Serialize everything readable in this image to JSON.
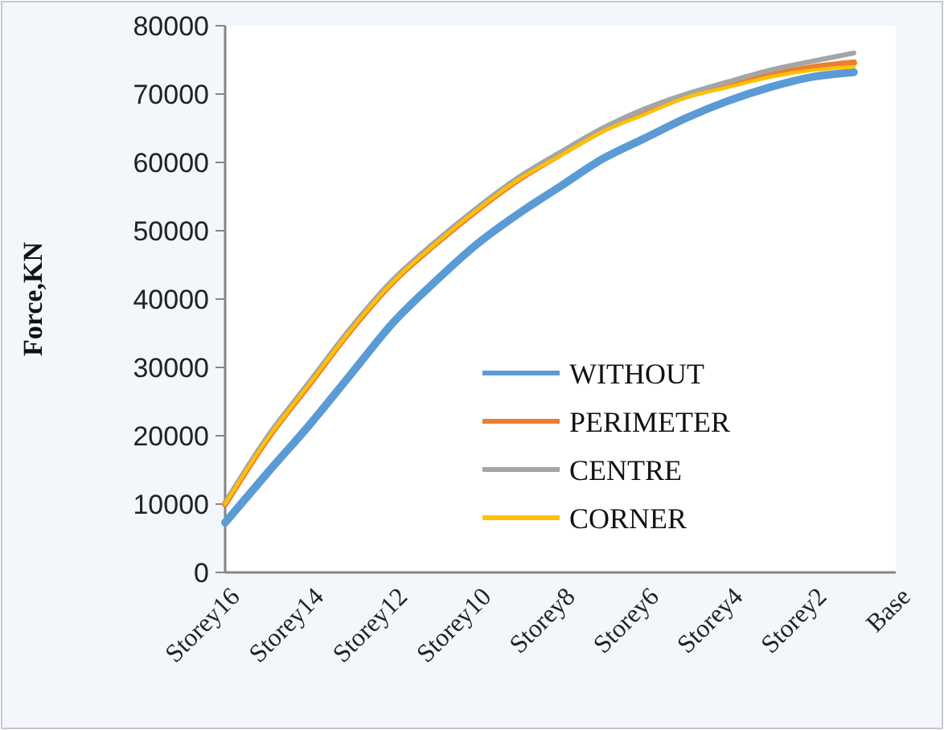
{
  "chart_data": {
    "type": "line",
    "ylabel": "Force,KN",
    "categories": [
      "Storey16",
      null,
      "Storey14",
      null,
      "Storey12",
      null,
      "Storey10",
      null,
      "Storey8",
      null,
      "Storey6",
      null,
      "Storey4",
      null,
      "Storey2",
      null,
      "Base"
    ],
    "series": [
      {
        "name": "WITHOUT",
        "color": "#5b9bd5",
        "values": [
          7300,
          14500,
          21500,
          29000,
          36500,
          42500,
          48000,
          52500,
          56500,
          60500,
          63500,
          66500,
          69000,
          71000,
          72500,
          73200,
          null
        ]
      },
      {
        "name": "PERIMETER",
        "color": "#ed7d31",
        "values": [
          10000,
          19500,
          27500,
          35500,
          42500,
          48000,
          53000,
          57500,
          61200,
          64700,
          67300,
          69700,
          71300,
          72800,
          73900,
          74600,
          null
        ]
      },
      {
        "name": "CENTRE",
        "color": "#a5a5a5",
        "values": [
          10200,
          19800,
          27800,
          35800,
          42800,
          48300,
          53300,
          57800,
          61500,
          65000,
          67800,
          70000,
          71800,
          73500,
          74800,
          76000,
          null
        ]
      },
      {
        "name": "CORNER",
        "color": "#ffc000",
        "values": [
          10000,
          19500,
          27500,
          35500,
          42500,
          48000,
          53000,
          57500,
          61000,
          64500,
          67000,
          69500,
          71000,
          72500,
          73500,
          74000,
          null
        ]
      }
    ],
    "ylim": [
      0,
      80000
    ],
    "yticks": [
      0,
      10000,
      20000,
      30000,
      40000,
      50000,
      60000,
      70000,
      80000
    ],
    "grid": false,
    "legend": "bottom right",
    "marker": "none",
    "line_style": "solid"
  }
}
